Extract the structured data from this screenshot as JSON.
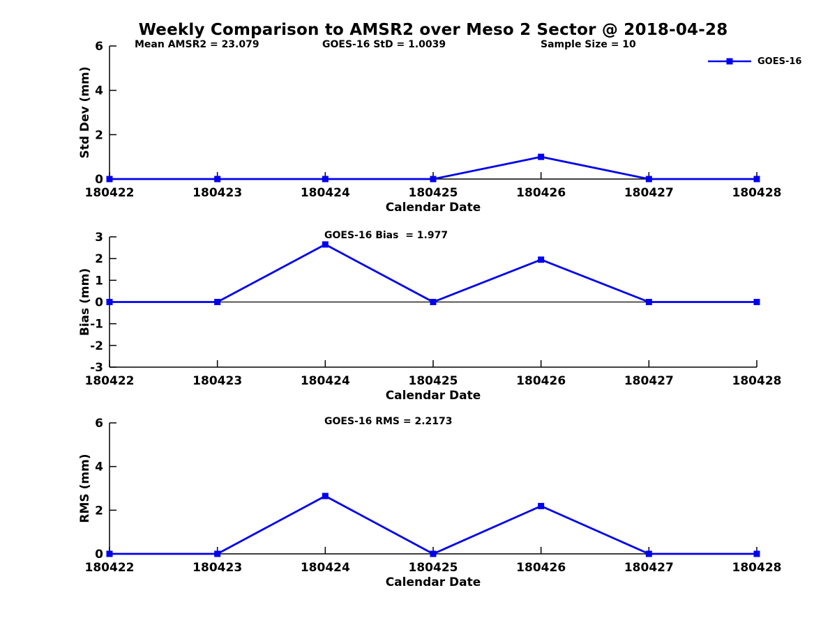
{
  "title": "Weekly Comparison to AMSR2 over Meso 2 Sector @ 2018-04-28",
  "legend": {
    "label": "GOES-16"
  },
  "colors": {
    "line": "#0000EE",
    "axis": "#000000",
    "text": "#000000",
    "background": "#FFFFFF"
  },
  "chart_data": [
    {
      "type": "line",
      "name": "std-dev",
      "title": "",
      "categories": [
        "180422",
        "180423",
        "180424",
        "180425",
        "180426",
        "180427",
        "180428"
      ],
      "series": [
        {
          "name": "GOES-16",
          "values": [
            0,
            0,
            0,
            0,
            1.0,
            0,
            0
          ]
        }
      ],
      "xlabel": "Calendar Date",
      "ylabel": "Std Dev (mm)",
      "ylim": [
        0,
        6
      ],
      "yticks": [
        0,
        2,
        4,
        6
      ],
      "grid": false,
      "legend_position": "top-right-outside",
      "marker": "square",
      "annotations": [
        "Mean AMSR2 = 23.079",
        "GOES-16 StD = 1.0039",
        "Sample Size = 10"
      ]
    },
    {
      "type": "line",
      "name": "bias",
      "title": "",
      "categories": [
        "180422",
        "180423",
        "180424",
        "180425",
        "180426",
        "180427",
        "180428"
      ],
      "series": [
        {
          "name": "GOES-16",
          "values": [
            0,
            0,
            2.65,
            0,
            1.95,
            0,
            0
          ]
        }
      ],
      "xlabel": "Calendar Date",
      "ylabel": "Bias (mm)",
      "ylim": [
        -3,
        3
      ],
      "yticks": [
        3,
        2,
        1,
        0,
        -1,
        -2,
        -3
      ],
      "grid": false,
      "zero_line": true,
      "marker": "square",
      "annotations": [
        "GOES-16 Bias  = 1.977"
      ]
    },
    {
      "type": "line",
      "name": "rms",
      "title": "",
      "categories": [
        "180422",
        "180423",
        "180424",
        "180425",
        "180426",
        "180427",
        "180428"
      ],
      "series": [
        {
          "name": "GOES-16",
          "values": [
            0,
            0,
            2.65,
            0,
            2.19,
            0,
            0
          ]
        }
      ],
      "xlabel": "Calendar Date",
      "ylabel": "RMS (mm)",
      "ylim": [
        0,
        6
      ],
      "yticks": [
        0,
        2,
        4,
        6
      ],
      "grid": false,
      "marker": "square",
      "annotations": [
        "GOES-16 RMS = 2.2173"
      ]
    }
  ]
}
